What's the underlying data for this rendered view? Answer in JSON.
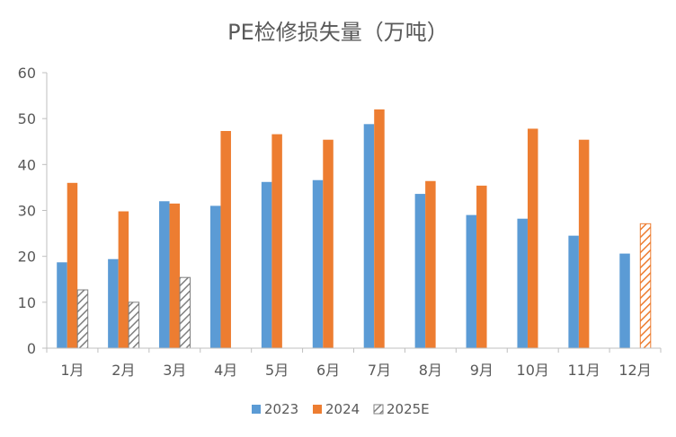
{
  "chart_data": {
    "type": "bar",
    "title": "PE检修损失量（万吨）",
    "categories": [
      "1月",
      "2月",
      "3月",
      "4月",
      "5月",
      "6月",
      "7月",
      "8月",
      "9月",
      "10月",
      "11月",
      "12月"
    ],
    "series": [
      {
        "name": "2023",
        "values": [
          18.7,
          19.4,
          32.0,
          31.0,
          36.2,
          36.6,
          48.8,
          33.6,
          29.0,
          28.2,
          24.5,
          20.6
        ],
        "color": "#5B9BD5",
        "pattern": "solid"
      },
      {
        "name": "2024",
        "values": [
          36.0,
          29.8,
          31.5,
          47.3,
          46.6,
          45.4,
          52.0,
          36.4,
          35.4,
          47.8,
          45.4,
          null
        ],
        "color": "#ED7D31",
        "pattern": "solid"
      },
      {
        "name": "2025E",
        "values": [
          12.7,
          10.0,
          15.4,
          null,
          null,
          null,
          null,
          null,
          null,
          null,
          null,
          27.1
        ],
        "color": "#7F7F7F",
        "pattern": "hatch",
        "point_colors": {
          "11": "#ED7D31"
        }
      }
    ],
    "ylim": [
      0,
      60
    ],
    "yticks": [
      0,
      10,
      20,
      30,
      40,
      50,
      60
    ],
    "xlabel": "",
    "ylabel": "",
    "legend": "bottom",
    "grid": false
  }
}
